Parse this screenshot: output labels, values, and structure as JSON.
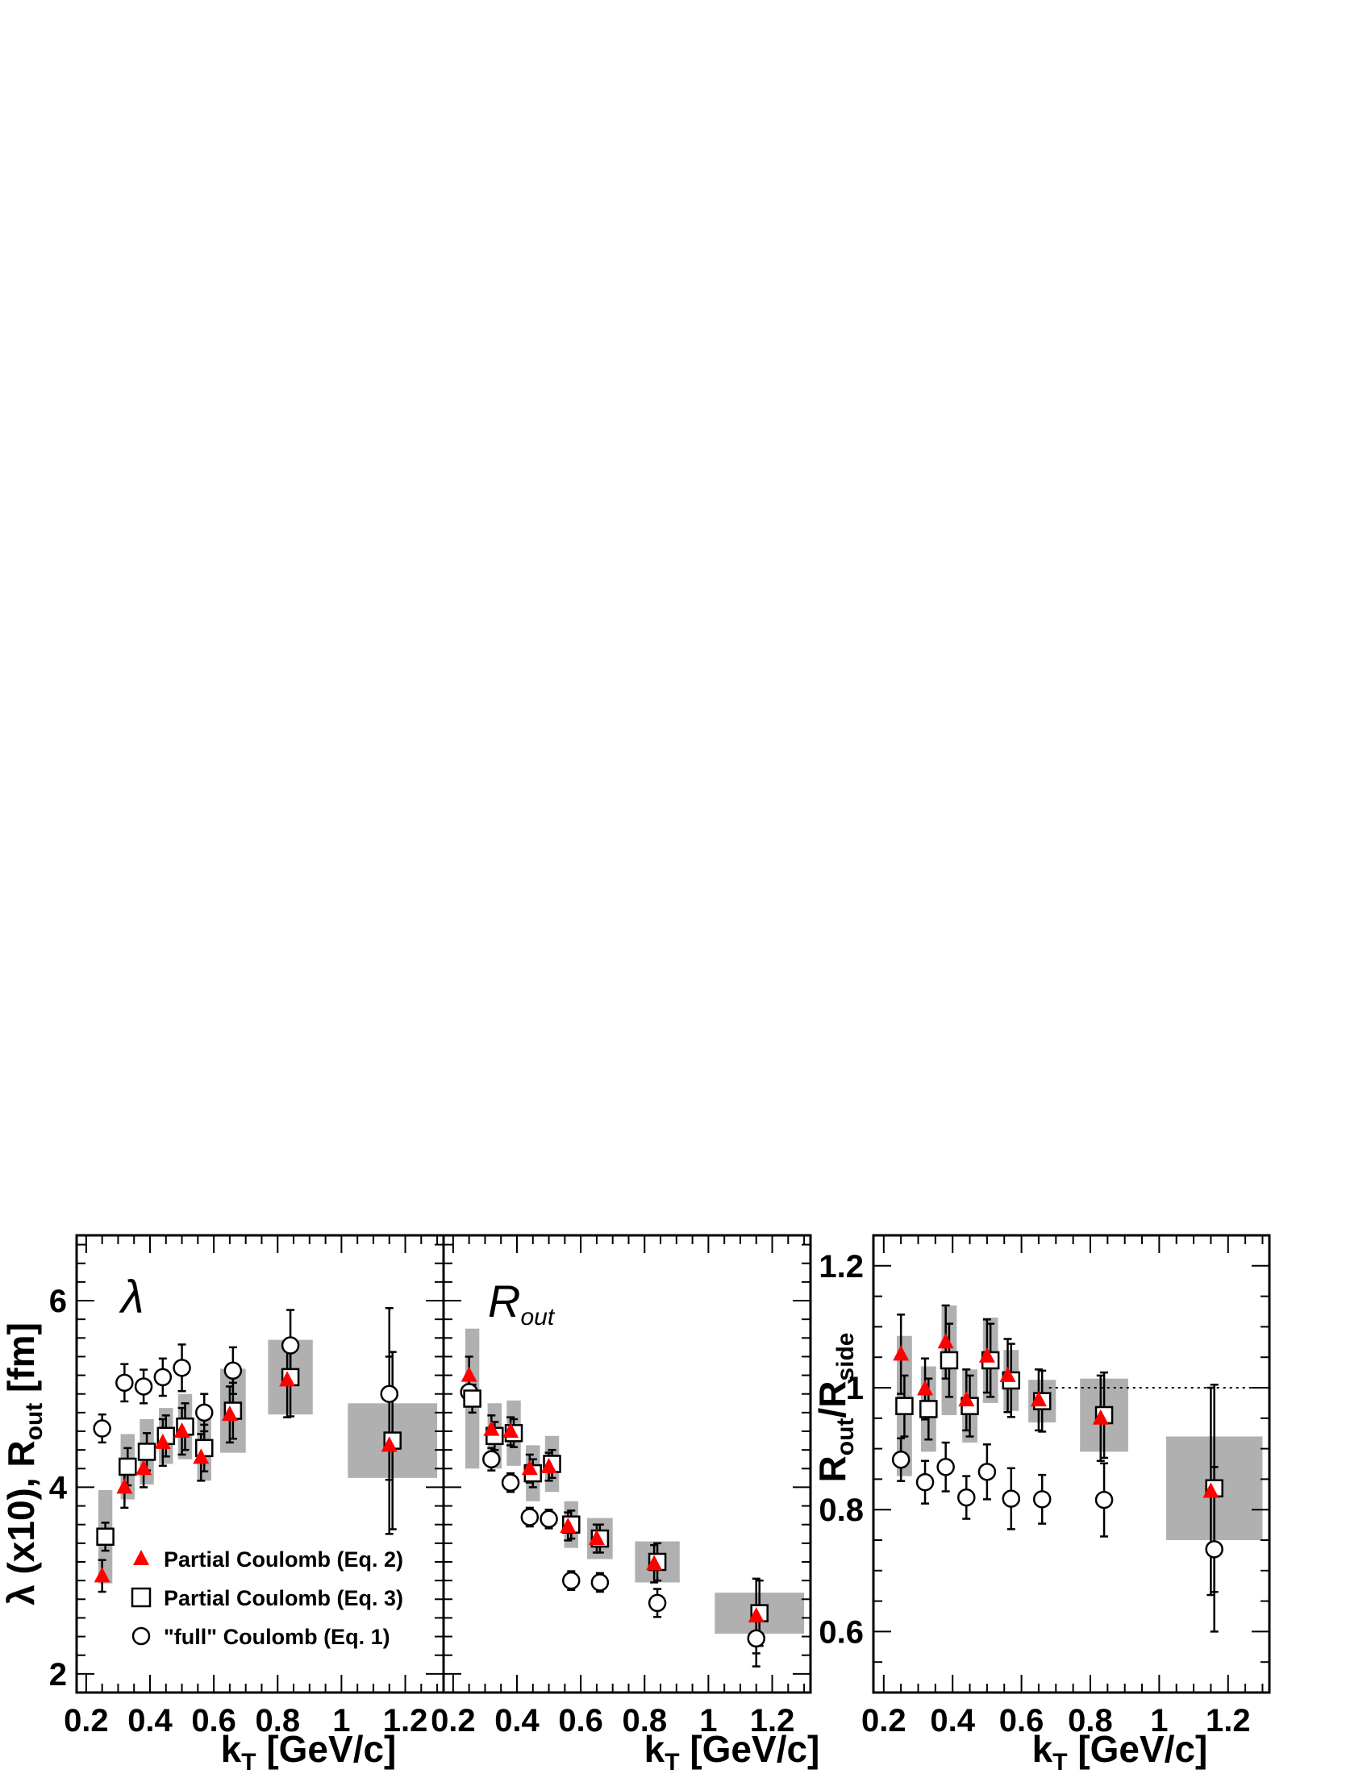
{
  "chart_data": [
    {
      "type": "scatter",
      "panel_label": "λ",
      "xlabel": "k_T [GeV/c]",
      "ylabel": "λ (x10),  R_out [fm]",
      "xlim": [
        0.17,
        1.32
      ],
      "ylim": [
        1.8,
        6.7
      ],
      "xticks": [
        0.2,
        0.4,
        0.6,
        0.8,
        1,
        1.2
      ],
      "xtick_labels": [
        "0.2",
        "0.4",
        "0.6",
        "0.8",
        "1",
        "1.2"
      ],
      "yticks": [
        2,
        4,
        6
      ],
      "ytick_labels": [
        "2",
        "4",
        "6"
      ],
      "legend": {
        "position": "bottom-center",
        "entries": [
          {
            "label": "Partial Coulomb (Eq. 2)",
            "marker": "triangle",
            "color": "#ff0000"
          },
          {
            "label": "Partial Coulomb (Eq. 3)",
            "marker": "open-square",
            "color": "#000000"
          },
          {
            "label": "\"full\" Coulomb  (Eq. 1)",
            "marker": "open-circle",
            "color": "#000000"
          }
        ]
      },
      "series": [
        {
          "marker": "triangle",
          "color": "#ff0000",
          "x": [
            0.25,
            0.32,
            0.38,
            0.44,
            0.5,
            0.56,
            0.65,
            0.83,
            1.15
          ],
          "y": [
            3.05,
            4.0,
            4.2,
            4.48,
            4.6,
            4.32,
            4.78,
            5.15,
            4.45
          ],
          "err": [
            0.17,
            0.22,
            0.2,
            0.25,
            0.25,
            0.25,
            0.3,
            0.4,
            0.95
          ]
        },
        {
          "marker": "open-square",
          "color": "#000000",
          "x": [
            0.26,
            0.33,
            0.39,
            0.45,
            0.51,
            0.57,
            0.66,
            0.84,
            1.16
          ],
          "y": [
            3.47,
            4.22,
            4.38,
            4.55,
            4.65,
            4.42,
            4.82,
            5.18,
            4.5
          ],
          "err": [
            0.15,
            0.2,
            0.2,
            0.22,
            0.25,
            0.25,
            0.3,
            0.42,
            0.95
          ],
          "sys": [
            0.5,
            0.35,
            0.35,
            0.3,
            0.35,
            0.35,
            0.45,
            0.4,
            0.4
          ],
          "sys_halfwidth": [
            0.022,
            0.022,
            0.022,
            0.022,
            0.022,
            0.022,
            0.04,
            0.07,
            0.14
          ]
        },
        {
          "marker": "open-circle",
          "color": "#000000",
          "x": [
            0.25,
            0.32,
            0.38,
            0.44,
            0.5,
            0.57,
            0.66,
            0.84,
            1.15
          ],
          "y": [
            4.63,
            5.12,
            5.08,
            5.18,
            5.28,
            4.8,
            5.25,
            5.52,
            5.0
          ],
          "err": [
            0.15,
            0.2,
            0.18,
            0.2,
            0.25,
            0.2,
            0.25,
            0.38,
            0.92
          ]
        }
      ]
    },
    {
      "type": "scatter",
      "panel_label": "R_out",
      "xlabel": "k_T [GeV/c]",
      "ylabel": "",
      "xlim": [
        0.17,
        1.32
      ],
      "ylim": [
        1.8,
        6.7
      ],
      "xticks": [
        0.2,
        0.4,
        0.6,
        0.8,
        1,
        1.2
      ],
      "xtick_labels": [
        "0.2",
        "0.4",
        "0.6",
        "0.8",
        "1",
        "1.2"
      ],
      "series": [
        {
          "marker": "triangle",
          "color": "#ff0000",
          "x": [
            0.25,
            0.32,
            0.38,
            0.44,
            0.5,
            0.56,
            0.65,
            0.83,
            1.15
          ],
          "y": [
            5.2,
            4.62,
            4.6,
            4.2,
            4.22,
            3.58,
            3.45,
            3.18,
            2.62
          ],
          "err": [
            0.2,
            0.15,
            0.15,
            0.15,
            0.15,
            0.15,
            0.15,
            0.2,
            0.4
          ]
        },
        {
          "marker": "open-square",
          "color": "#000000",
          "x": [
            0.26,
            0.33,
            0.39,
            0.45,
            0.51,
            0.57,
            0.66,
            0.84,
            1.16
          ],
          "y": [
            4.95,
            4.55,
            4.58,
            4.15,
            4.25,
            3.6,
            3.45,
            3.2,
            2.65
          ],
          "err": [
            0.15,
            0.15,
            0.15,
            0.15,
            0.15,
            0.15,
            0.15,
            0.2,
            0.35
          ],
          "sys": [
            0.75,
            0.35,
            0.35,
            0.3,
            0.3,
            0.25,
            0.22,
            0.22,
            0.22
          ],
          "sys_halfwidth": [
            0.022,
            0.022,
            0.022,
            0.022,
            0.022,
            0.022,
            0.04,
            0.07,
            0.14
          ]
        },
        {
          "marker": "open-circle",
          "color": "#000000",
          "x": [
            0.25,
            0.32,
            0.38,
            0.44,
            0.5,
            0.57,
            0.66,
            0.84,
            1.15
          ],
          "y": [
            5.02,
            4.3,
            4.05,
            3.68,
            3.66,
            3.0,
            2.98,
            2.76,
            2.38
          ],
          "err": [
            0.15,
            0.12,
            0.1,
            0.1,
            0.1,
            0.1,
            0.1,
            0.15,
            0.3
          ]
        }
      ]
    },
    {
      "type": "scatter",
      "panel_label": "",
      "xlabel": "k_T [GeV/c]",
      "ylabel": "R_out/R_side",
      "xlim": [
        0.17,
        1.32
      ],
      "ylim": [
        0.5,
        1.25
      ],
      "xticks": [
        0.2,
        0.4,
        0.6,
        0.8,
        1,
        1.2
      ],
      "xtick_labels": [
        "0.2",
        "0.4",
        "0.6",
        "0.8",
        "1",
        "1.2"
      ],
      "yticks": [
        0.6,
        0.8,
        1,
        1.2
      ],
      "ytick_labels": [
        "0.6",
        "0.8",
        "1",
        "1.2"
      ],
      "reference_line": 1.0,
      "series": [
        {
          "marker": "triangle",
          "color": "#ff0000",
          "x": [
            0.25,
            0.32,
            0.38,
            0.44,
            0.5,
            0.56,
            0.65,
            0.83,
            1.15
          ],
          "y": [
            1.055,
            0.998,
            1.075,
            0.98,
            1.052,
            1.02,
            0.98,
            0.95,
            0.83
          ],
          "err": [
            0.065,
            0.05,
            0.06,
            0.05,
            0.06,
            0.06,
            0.05,
            0.07,
            0.17
          ]
        },
        {
          "marker": "open-square",
          "color": "#000000",
          "x": [
            0.26,
            0.33,
            0.39,
            0.45,
            0.51,
            0.57,
            0.66,
            0.84,
            1.16
          ],
          "y": [
            0.97,
            0.965,
            1.045,
            0.97,
            1.045,
            1.012,
            0.978,
            0.955,
            0.835
          ],
          "err": [
            0.05,
            0.05,
            0.06,
            0.05,
            0.06,
            0.06,
            0.05,
            0.07,
            0.17
          ],
          "sys": [
            0.115,
            0.07,
            0.09,
            0.06,
            0.07,
            0.05,
            0.035,
            0.06,
            0.085
          ],
          "sys_halfwidth": [
            0.022,
            0.022,
            0.022,
            0.022,
            0.022,
            0.022,
            0.04,
            0.07,
            0.14
          ]
        },
        {
          "marker": "open-circle",
          "color": "#000000",
          "x": [
            0.25,
            0.32,
            0.38,
            0.44,
            0.5,
            0.57,
            0.66,
            0.84,
            1.16
          ],
          "y": [
            0.882,
            0.845,
            0.87,
            0.82,
            0.862,
            0.818,
            0.817,
            0.816,
            0.735
          ],
          "err": [
            0.035,
            0.035,
            0.04,
            0.035,
            0.045,
            0.05,
            0.04,
            0.06,
            0.135
          ]
        }
      ]
    }
  ]
}
